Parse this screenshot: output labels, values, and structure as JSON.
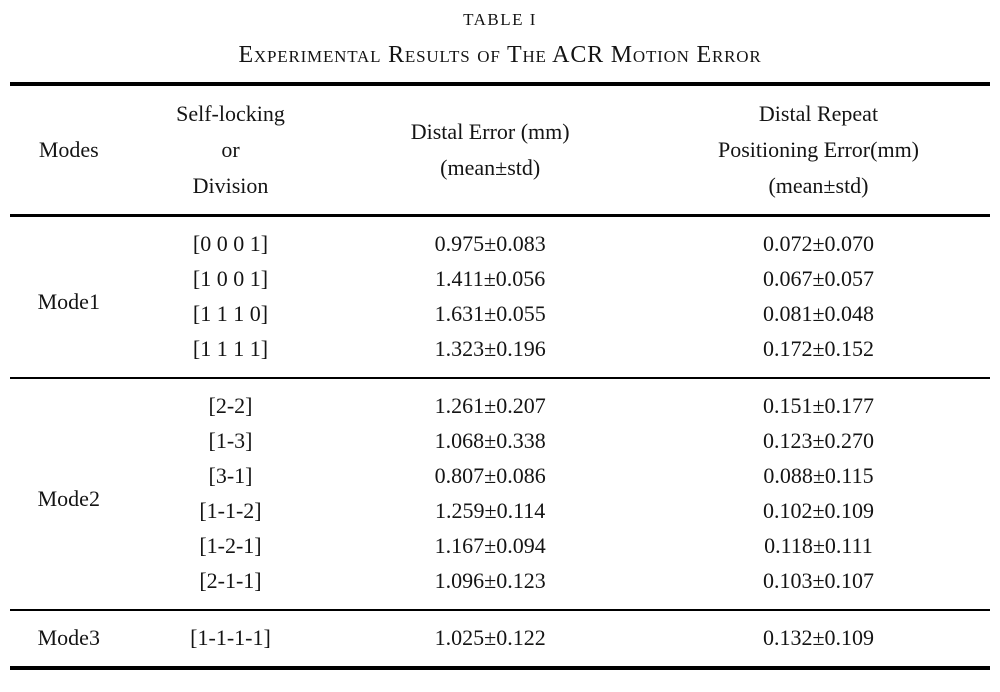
{
  "page": {
    "title": "TABLE I",
    "caption": "Experimental Results of The ACR Motion Error"
  },
  "table": {
    "header": {
      "modes": "Modes",
      "division_lines": [
        "Self-locking",
        "or",
        "Division"
      ],
      "distal_lines": [
        "Distal Error (mm)",
        "(mean±std)"
      ],
      "repeat_lines": [
        "Distal Repeat",
        "Positioning Error(mm)",
        "(mean±std)"
      ]
    },
    "groups": [
      {
        "mode": "Mode1",
        "rows": [
          {
            "division": "[0 0 0 1]",
            "distal": "0.975±0.083",
            "repeat": "0.072±0.070"
          },
          {
            "division": "[1 0 0 1]",
            "distal": "1.411±0.056",
            "repeat": "0.067±0.057"
          },
          {
            "division": "[1 1 1 0]",
            "distal": "1.631±0.055",
            "repeat": "0.081±0.048"
          },
          {
            "division": "[1 1 1 1]",
            "distal": "1.323±0.196",
            "repeat": "0.172±0.152"
          }
        ]
      },
      {
        "mode": "Mode2",
        "rows": [
          {
            "division": "[2-2]",
            "distal": "1.261±0.207",
            "repeat": "0.151±0.177"
          },
          {
            "division": "[1-3]",
            "distal": "1.068±0.338",
            "repeat": "0.123±0.270"
          },
          {
            "division": "[3-1]",
            "distal": "0.807±0.086",
            "repeat": "0.088±0.115"
          },
          {
            "division": "[1-1-2]",
            "distal": "1.259±0.114",
            "repeat": "0.102±0.109"
          },
          {
            "division": "[1-2-1]",
            "distal": "1.167±0.094",
            "repeat": "0.118±0.111"
          },
          {
            "division": "[2-1-1]",
            "distal": "1.096±0.123",
            "repeat": "0.103±0.107"
          }
        ]
      },
      {
        "mode": "Mode3",
        "rows": [
          {
            "division": "[1-1-1-1]",
            "distal": "1.025±0.122",
            "repeat": "0.132±0.109"
          }
        ]
      }
    ]
  }
}
